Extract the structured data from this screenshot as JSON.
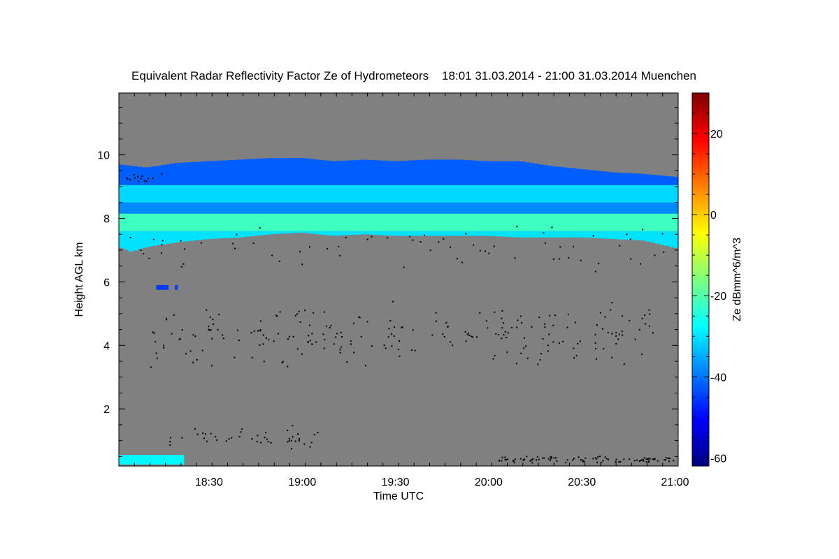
{
  "chart_data": {
    "type": "heatmap",
    "title": "Equivalent Radar Reflectivity Factor Ze of Hydrometeors    18:01 31.03.2014 - 21:00 31.03.2014 Muenchen",
    "xlabel": "Time UTC",
    "ylabel": "Height AGL km",
    "colorbar_label": "Ze dBmm^6/m^3",
    "x_range_minutes_utc": [
      1081,
      1261
    ],
    "x_ticks": [
      {
        "label": "18:30",
        "minutes": 1110
      },
      {
        "label": "19:00",
        "minutes": 1140
      },
      {
        "label": "19:30",
        "minutes": 1170
      },
      {
        "label": "20:00",
        "minutes": 1200
      },
      {
        "label": "20:30",
        "minutes": 1230
      },
      {
        "label": "21:00",
        "minutes": 1260
      }
    ],
    "y_range_km": [
      0.2,
      11.95
    ],
    "y_ticks": [
      {
        "label": "2",
        "value": 2
      },
      {
        "label": "4",
        "value": 4
      },
      {
        "label": "6",
        "value": 6
      },
      {
        "label": "8",
        "value": 8
      },
      {
        "label": "10",
        "value": 10
      }
    ],
    "colorbar_range": [
      -62,
      30
    ],
    "colorbar_ticks": [
      {
        "label": "20",
        "value": 20
      },
      {
        "label": "0",
        "value": 0
      },
      {
        "label": "-20",
        "value": -20
      },
      {
        "label": "-40",
        "value": -40
      },
      {
        "label": "-60",
        "value": -60
      }
    ],
    "colormap": [
      "#00007f",
      "#0000ff",
      "#007fff",
      "#00ffff",
      "#7fff7f",
      "#ffff00",
      "#ff7f00",
      "#ff0000",
      "#7f0000"
    ],
    "background_color": "#808080",
    "cloud_layer": {
      "top_km": [
        [
          1081,
          9.7
        ],
        [
          1090,
          9.6
        ],
        [
          1100,
          9.75
        ],
        [
          1110,
          9.8
        ],
        [
          1120,
          9.85
        ],
        [
          1130,
          9.9
        ],
        [
          1140,
          9.9
        ],
        [
          1150,
          9.8
        ],
        [
          1160,
          9.85
        ],
        [
          1170,
          9.8
        ],
        [
          1180,
          9.85
        ],
        [
          1190,
          9.85
        ],
        [
          1200,
          9.8
        ],
        [
          1210,
          9.8
        ],
        [
          1220,
          9.65
        ],
        [
          1230,
          9.55
        ],
        [
          1240,
          9.45
        ],
        [
          1250,
          9.4
        ],
        [
          1261,
          9.3
        ]
      ],
      "base_km": [
        [
          1081,
          7.1
        ],
        [
          1085,
          6.95
        ],
        [
          1090,
          7.1
        ],
        [
          1100,
          7.25
        ],
        [
          1110,
          7.35
        ],
        [
          1120,
          7.4
        ],
        [
          1130,
          7.5
        ],
        [
          1140,
          7.55
        ],
        [
          1150,
          7.45
        ],
        [
          1160,
          7.5
        ],
        [
          1170,
          7.45
        ],
        [
          1180,
          7.45
        ],
        [
          1190,
          7.45
        ],
        [
          1200,
          7.45
        ],
        [
          1210,
          7.4
        ],
        [
          1220,
          7.4
        ],
        [
          1230,
          7.4
        ],
        [
          1240,
          7.35
        ],
        [
          1250,
          7.3
        ],
        [
          1261,
          7.05
        ]
      ],
      "bands_dbz": [
        {
          "from_km": "base",
          "to_km": 7.6,
          "ze": -30
        },
        {
          "from_km": 7.6,
          "to_km": 8.15,
          "ze": -22
        },
        {
          "from_km": 8.15,
          "to_km": 8.5,
          "ze": -38
        },
        {
          "from_km": 8.5,
          "to_km": 9.05,
          "ze": -31
        },
        {
          "from_km": 9.05,
          "to_km": "top",
          "ze": -42
        }
      ]
    },
    "small_echoes": [
      {
        "t_start": 1093,
        "t_end": 1097,
        "h_low_km": 5.75,
        "h_high_km": 5.9,
        "ze": -45
      },
      {
        "t_start": 1099,
        "t_end": 1100,
        "h_low_km": 5.75,
        "h_high_km": 5.9,
        "ze": -45
      },
      {
        "t_start": 1081,
        "t_end": 1102,
        "h_low_km": 0.25,
        "h_high_km": 0.55,
        "ze": -28
      }
    ],
    "clutter_bands": [
      {
        "t_start": 1097,
        "t_end": 1145,
        "h_center_km": 1.1,
        "h_spread_km": 0.5,
        "count": 45
      },
      {
        "t_start": 1091,
        "t_end": 1253,
        "h_center_km": 4.35,
        "h_spread_km": 1.1,
        "count": 230
      },
      {
        "t_start": 1081,
        "t_end": 1261,
        "h_center_km": 7.1,
        "h_spread_km": 0.8,
        "count": 70
      },
      {
        "t_start": 1203,
        "t_end": 1261,
        "h_center_km": 0.43,
        "h_spread_km": 0.12,
        "count": 90
      },
      {
        "t_start": 1082,
        "t_end": 1095,
        "h_center_km": 9.28,
        "h_spread_km": 0.2,
        "count": 14
      }
    ]
  }
}
